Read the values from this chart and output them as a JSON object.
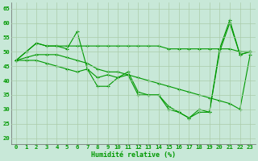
{
  "x": [
    0,
    1,
    2,
    3,
    4,
    5,
    6,
    7,
    8,
    9,
    10,
    11,
    12,
    13,
    14,
    15,
    16,
    17,
    18,
    19,
    20,
    21,
    22,
    23
  ],
  "line1": [
    47,
    50,
    53,
    52,
    52,
    51,
    57,
    44,
    38,
    38,
    41,
    43,
    36,
    35,
    35,
    31,
    29,
    27,
    30,
    29,
    51,
    61,
    49,
    50
  ],
  "line2": [
    47,
    50,
    53,
    52,
    52,
    52,
    52,
    52,
    52,
    52,
    52,
    52,
    52,
    52,
    52,
    51,
    51,
    51,
    51,
    51,
    51,
    51,
    50,
    50
  ],
  "line3": [
    47,
    47,
    47,
    46,
    45,
    44,
    43,
    44,
    41,
    42,
    41,
    42,
    35,
    35,
    35,
    30,
    29,
    27,
    29,
    29,
    50,
    60,
    49,
    50
  ],
  "line4": [
    47,
    48,
    49,
    49,
    49,
    48,
    47,
    46,
    44,
    43,
    43,
    42,
    41,
    40,
    39,
    38,
    37,
    36,
    35,
    34,
    33,
    32,
    30,
    49
  ],
  "bg_color": "#c8e8d8",
  "grid_color": "#aaccaa",
  "line_color": "#009900",
  "xlabel": "Humidité relative (%)",
  "ylim": [
    18,
    67
  ],
  "xlim": [
    -0.5,
    23.5
  ],
  "yticks": [
    20,
    25,
    30,
    35,
    40,
    45,
    50,
    55,
    60,
    65
  ],
  "xticks": [
    0,
    1,
    2,
    3,
    4,
    5,
    6,
    7,
    8,
    9,
    10,
    11,
    12,
    13,
    14,
    15,
    16,
    17,
    18,
    19,
    20,
    21,
    22,
    23
  ],
  "tick_fontsize": 5.2,
  "xlabel_fontsize": 6.0
}
